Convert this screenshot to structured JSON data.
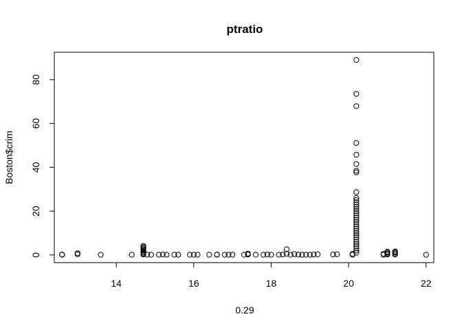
{
  "chart_data": {
    "type": "scatter",
    "title": "ptratio",
    "xlabel": "0.29",
    "ylabel": "Boston$crim",
    "xlim": [
      12.4,
      22.2
    ],
    "ylim": [
      -3.5,
      92.5
    ],
    "xticks": [
      14,
      16,
      18,
      20,
      22
    ],
    "yticks": [
      0,
      20,
      40,
      60,
      80
    ],
    "grid": false,
    "legend": "none",
    "series": [
      {
        "points": [
          [
            12.6,
            0.1
          ],
          [
            12.6,
            0.2
          ],
          [
            13.0,
            0.3
          ],
          [
            13.0,
            0.8
          ],
          [
            13.6,
            0.1
          ],
          [
            14.4,
            0.1
          ],
          [
            14.7,
            0.2
          ],
          [
            14.7,
            0.6
          ],
          [
            14.7,
            1.1
          ],
          [
            14.7,
            1.6
          ],
          [
            14.7,
            2.1
          ],
          [
            14.7,
            2.6
          ],
          [
            14.7,
            3.1
          ],
          [
            14.7,
            3.6
          ],
          [
            14.7,
            4.1
          ],
          [
            14.8,
            0.1
          ],
          [
            14.9,
            0.1
          ],
          [
            15.1,
            0.1
          ],
          [
            15.2,
            0.2
          ],
          [
            15.3,
            0.1
          ],
          [
            15.5,
            0.1
          ],
          [
            15.6,
            0.1
          ],
          [
            15.9,
            0.1
          ],
          [
            16.0,
            0.1
          ],
          [
            16.1,
            0.1
          ],
          [
            16.4,
            0.1
          ],
          [
            16.6,
            0.1
          ],
          [
            16.6,
            0.2
          ],
          [
            16.8,
            0.1
          ],
          [
            16.9,
            0.1
          ],
          [
            17.0,
            0.1
          ],
          [
            17.3,
            0.1
          ],
          [
            17.4,
            0.2
          ],
          [
            17.4,
            0.6
          ],
          [
            17.6,
            0.1
          ],
          [
            17.8,
            0.1
          ],
          [
            17.9,
            0.2
          ],
          [
            18.0,
            0.1
          ],
          [
            18.2,
            0.1
          ],
          [
            18.3,
            0.2
          ],
          [
            18.4,
            0.5
          ],
          [
            18.4,
            2.6
          ],
          [
            18.5,
            0.1
          ],
          [
            18.6,
            0.4
          ],
          [
            18.7,
            0.2
          ],
          [
            18.8,
            0.1
          ],
          [
            18.9,
            0.1
          ],
          [
            19.0,
            0.1
          ],
          [
            19.1,
            0.2
          ],
          [
            19.2,
            0.3
          ],
          [
            19.6,
            0.2
          ],
          [
            19.7,
            0.3
          ],
          [
            20.1,
            0.1
          ],
          [
            20.1,
            0.5
          ],
          [
            20.2,
            1.0
          ],
          [
            20.2,
            2.0
          ],
          [
            20.2,
            3.0
          ],
          [
            20.2,
            4.0
          ],
          [
            20.2,
            5.0
          ],
          [
            20.2,
            6.0
          ],
          [
            20.2,
            7.0
          ],
          [
            20.2,
            8.0
          ],
          [
            20.2,
            9.0
          ],
          [
            20.2,
            10.0
          ],
          [
            20.2,
            11.0
          ],
          [
            20.2,
            12.0
          ],
          [
            20.2,
            13.0
          ],
          [
            20.2,
            14.0
          ],
          [
            20.2,
            15.0
          ],
          [
            20.2,
            16.0
          ],
          [
            20.2,
            17.0
          ],
          [
            20.2,
            18.0
          ],
          [
            20.2,
            19.0
          ],
          [
            20.2,
            20.0
          ],
          [
            20.2,
            21.0
          ],
          [
            20.2,
            22.0
          ],
          [
            20.2,
            23.0
          ],
          [
            20.2,
            24.0
          ],
          [
            20.2,
            25.0
          ],
          [
            20.2,
            26.0
          ],
          [
            20.2,
            28.7
          ],
          [
            20.2,
            37.7
          ],
          [
            20.2,
            38.4
          ],
          [
            20.2,
            41.5
          ],
          [
            20.2,
            45.7
          ],
          [
            20.2,
            51.1
          ],
          [
            20.2,
            67.9
          ],
          [
            20.2,
            73.5
          ],
          [
            20.2,
            89.0
          ],
          [
            20.9,
            0.1
          ],
          [
            20.9,
            0.5
          ],
          [
            21.0,
            0.2
          ],
          [
            21.0,
            0.6
          ],
          [
            21.0,
            1.1
          ],
          [
            21.0,
            1.5
          ],
          [
            21.2,
            0.2
          ],
          [
            21.2,
            0.7
          ],
          [
            21.2,
            1.2
          ],
          [
            21.2,
            1.6
          ],
          [
            22.0,
            0.1
          ]
        ]
      }
    ]
  }
}
